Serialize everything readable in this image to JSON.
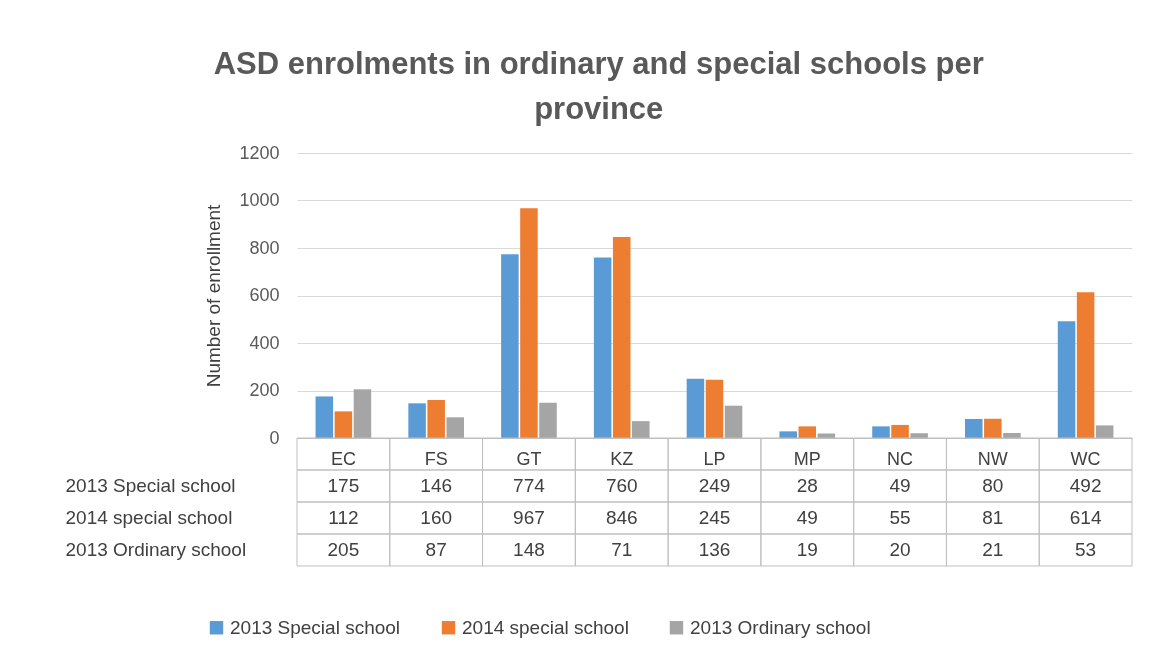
{
  "chart_data": {
    "type": "bar",
    "title": "ASD enrolments in ordinary and special schools per province",
    "ylabel": "Number of enrollment",
    "categories": [
      "EC",
      "FS",
      "GT",
      "KZ",
      "LP",
      "MP",
      "NC",
      "NW",
      "WC"
    ],
    "series": [
      {
        "name": "2013 Special school",
        "color": "#5b9bd5",
        "values": [
          175,
          146,
          774,
          760,
          249,
          28,
          49,
          80,
          492
        ]
      },
      {
        "name": "2014 special school",
        "color": "#ed7d31",
        "values": [
          112,
          160,
          967,
          846,
          245,
          49,
          55,
          81,
          614
        ]
      },
      {
        "name": "2013 Ordinary school",
        "color": "#a5a5a5",
        "values": [
          205,
          87,
          148,
          71,
          136,
          19,
          20,
          21,
          53
        ]
      }
    ],
    "ylim": [
      0,
      1200
    ],
    "yticks": [
      0,
      200,
      400,
      600,
      800,
      1000,
      1200
    ],
    "grid": "y",
    "legend": "bottom",
    "data_labels": true
  }
}
